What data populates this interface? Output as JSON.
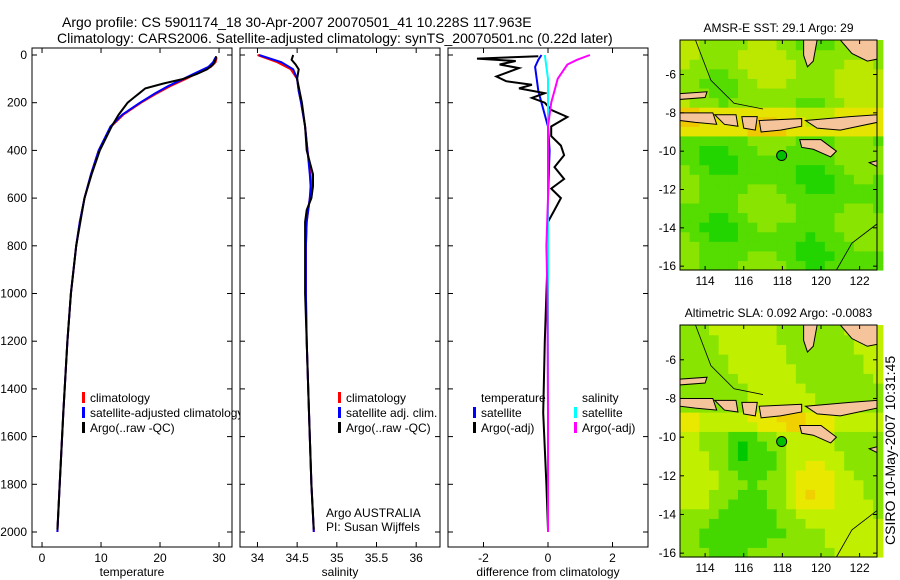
{
  "title": {
    "line1": "Argo profile: CS 5901174_18 30-Apr-2007 20070501_41 10.228S 117.963E",
    "line2": "Climatology: CARS2006. Satellite-adjusted climatology: synTS_20070501.nc (0.22d later)"
  },
  "colors": {
    "clim": "#ff0000",
    "sat": "#0000ff",
    "argo": "#000000",
    "sal_sat": "#00ffff",
    "sal_argo": "#ff00ff",
    "land": "#f5c49a"
  },
  "chart_data": [
    {
      "type": "line",
      "id": "temperature",
      "xlabel": "temperature",
      "xlim": [
        -1.7,
        32.2
      ],
      "ylim": [
        2060,
        0
      ],
      "xticks": [
        0,
        10,
        20,
        30
      ],
      "yticks": [
        0,
        200,
        400,
        600,
        800,
        1000,
        1200,
        1400,
        1600,
        1800,
        2000
      ],
      "legend": [
        "climatology",
        "satellite-adjusted climatology",
        "Argo(..raw -QC)"
      ],
      "series": [
        {
          "name": "climatology",
          "color": "clim",
          "p": [
            10,
            30,
            50,
            80,
            100,
            130,
            160,
            200,
            250,
            300,
            400,
            500,
            600,
            700,
            800,
            1000,
            1200,
            1500,
            1800,
            2000
          ],
          "v": [
            29.6,
            29.4,
            28.6,
            26,
            24.4,
            21.8,
            19.5,
            16.8,
            13.8,
            11.7,
            9.6,
            8.3,
            7.2,
            6.4,
            5.8,
            4.9,
            4.3,
            3.6,
            3.0,
            2.6
          ]
        },
        {
          "name": "satellite",
          "color": "sat",
          "p": [
            10,
            30,
            50,
            80,
            100,
            130,
            160,
            200,
            250,
            300,
            400,
            500,
            600,
            700,
            800,
            1000,
            1200,
            1500,
            1800,
            2000
          ],
          "v": [
            29.4,
            29.0,
            28.2,
            25.6,
            24.0,
            21.4,
            19.2,
            16.6,
            13.6,
            11.6,
            9.6,
            8.3,
            7.2,
            6.4,
            5.8,
            4.9,
            4.3,
            3.6,
            3.0,
            2.6
          ]
        },
        {
          "name": "argo",
          "color": "argo",
          "p": [
            5,
            20,
            40,
            60,
            80,
            100,
            120,
            140,
            160,
            180,
            200,
            250,
            300,
            400,
            500,
            600,
            800,
            1000,
            1200,
            1500,
            1800,
            1990
          ],
          "v": [
            29.5,
            29.4,
            29.0,
            28,
            26.2,
            24,
            20.5,
            17.5,
            16.5,
            15.5,
            14.5,
            13,
            11.8,
            9.8,
            8.4,
            7.2,
            5.8,
            4.9,
            4.3,
            3.6,
            3.0,
            2.6
          ]
        }
      ]
    },
    {
      "type": "line",
      "id": "salinity",
      "xlabel": "salinity",
      "xlim": [
        33.78,
        36.3
      ],
      "ylim": [
        2060,
        0
      ],
      "xticks": [
        34,
        34.5,
        35,
        35.5,
        36
      ],
      "legend": [
        "climatology",
        "satellite adj. clim.",
        "Argo(..raw -QC)"
      ],
      "annotation": [
        "Argo AUSTRALIA",
        "PI: Susan Wijffels"
      ],
      "series": [
        {
          "name": "climatology",
          "color": "clim",
          "p": [
            0,
            30,
            60,
            100,
            150,
            200,
            300,
            400,
            500,
            550,
            600,
            700,
            800,
            1000,
            1200,
            1500,
            1800,
            2000
          ],
          "v": [
            34.0,
            34.25,
            34.42,
            34.5,
            34.52,
            34.55,
            34.6,
            34.63,
            34.67,
            34.68,
            34.66,
            34.62,
            34.61,
            34.61,
            34.62,
            34.65,
            34.68,
            34.71
          ]
        },
        {
          "name": "satellite",
          "color": "sat",
          "p": [
            0,
            30,
            60,
            100,
            150,
            200,
            300,
            400,
            500,
            550,
            600,
            700,
            800,
            1000,
            1200,
            1500,
            1800,
            2000
          ],
          "v": [
            34.02,
            34.3,
            34.45,
            34.5,
            34.52,
            34.55,
            34.6,
            34.63,
            34.66,
            34.67,
            34.66,
            34.62,
            34.61,
            34.61,
            34.62,
            34.65,
            34.68,
            34.71
          ]
        },
        {
          "name": "argo",
          "color": "argo",
          "p": [
            0,
            20,
            40,
            60,
            100,
            150,
            200,
            300,
            400,
            450,
            500,
            550,
            600,
            650,
            700,
            800,
            1000,
            1200,
            1500,
            1800,
            1990
          ],
          "v": [
            34.45,
            34.43,
            34.48,
            34.52,
            34.5,
            34.53,
            34.56,
            34.6,
            34.62,
            34.66,
            34.7,
            34.7,
            34.68,
            34.62,
            34.6,
            34.6,
            34.6,
            34.62,
            34.65,
            34.68,
            34.71
          ]
        }
      ]
    },
    {
      "type": "line",
      "id": "difference",
      "xlabel": "difference from climatology",
      "xlim": [
        -3.1,
        3.1
      ],
      "ylim": [
        2060,
        0
      ],
      "xticks": [
        -2,
        0,
        2
      ],
      "legend_temperature": {
        "title": "temperature",
        "items": [
          "satellite",
          "Argo(-adj)"
        ]
      },
      "legend_salinity": {
        "title": "salinity",
        "items": [
          "satellite",
          "Argo(-adj)"
        ]
      },
      "series": [
        {
          "name": "temp satellite",
          "color": "sat",
          "p": [
            0,
            20,
            50,
            100,
            150,
            200,
            300,
            400,
            600,
            1000,
            1500,
            2000
          ],
          "v": [
            -0.2,
            -0.3,
            -0.4,
            -0.35,
            -0.3,
            -0.2,
            0,
            0.05,
            0,
            0,
            0,
            0
          ]
        },
        {
          "name": "temp argo",
          "color": "argo",
          "p": [
            5,
            15,
            25,
            40,
            55,
            70,
            90,
            110,
            125,
            140,
            160,
            180,
            200,
            230,
            260,
            300,
            340,
            380,
            420,
            470,
            520,
            560,
            600,
            650,
            700,
            800,
            1000,
            1200,
            1500,
            1800,
            1990
          ],
          "v": [
            -0.3,
            -2.2,
            -1.0,
            -1.5,
            -0.9,
            -1.2,
            -1.6,
            -1.3,
            -0.5,
            -0.9,
            -0.1,
            -0.5,
            -0.1,
            0.1,
            0.6,
            0.1,
            0.1,
            0.4,
            0.5,
            0.2,
            0.5,
            0.1,
            0.4,
            0.2,
            0,
            0,
            -0.05,
            -0.1,
            -0.15,
            -0.05,
            0
          ]
        },
        {
          "name": "sal satellite",
          "color": "sal_sat",
          "p": [
            0,
            50,
            100,
            200,
            400,
            600,
            1000,
            1500,
            2000
          ],
          "v": [
            -0.1,
            -0.05,
            0,
            0,
            0,
            0,
            0,
            0,
            0
          ]
        },
        {
          "name": "sal argo",
          "color": "sal_argo",
          "p": [
            0,
            20,
            40,
            60,
            100,
            150,
            200,
            300,
            400,
            600,
            800,
            1000,
            1500,
            2000
          ],
          "v": [
            1.3,
            0.9,
            0.6,
            0.5,
            0.3,
            0.2,
            0.1,
            0,
            0,
            0,
            -0.05,
            -0.02,
            0,
            0
          ]
        }
      ]
    },
    {
      "type": "heatmap",
      "id": "sst",
      "title": "AMSR-E SST: 29.1  Argo: 29",
      "xlim": [
        112.7,
        122.9
      ],
      "ylim": [
        -16.2,
        -4.2
      ],
      "xticks": [
        114,
        116,
        118,
        120,
        122
      ],
      "yticks": [
        -6,
        -8,
        -10,
        -12,
        -14,
        -16
      ],
      "argo_position": [
        117.963,
        -10.228
      ]
    },
    {
      "type": "heatmap",
      "id": "sla",
      "title": "Altimetric SLA: 0.092  Argo: -0.0083",
      "xlim": [
        112.7,
        122.9
      ],
      "ylim": [
        -16.2,
        -4.2
      ],
      "xticks": [
        114,
        116,
        118,
        120,
        122
      ],
      "yticks": [
        -6,
        -8,
        -10,
        -12,
        -14,
        -16
      ],
      "argo_position": [
        117.963,
        -10.228
      ]
    }
  ],
  "footer_stamp": "CSIRO 10-May-2007 10:31:45"
}
